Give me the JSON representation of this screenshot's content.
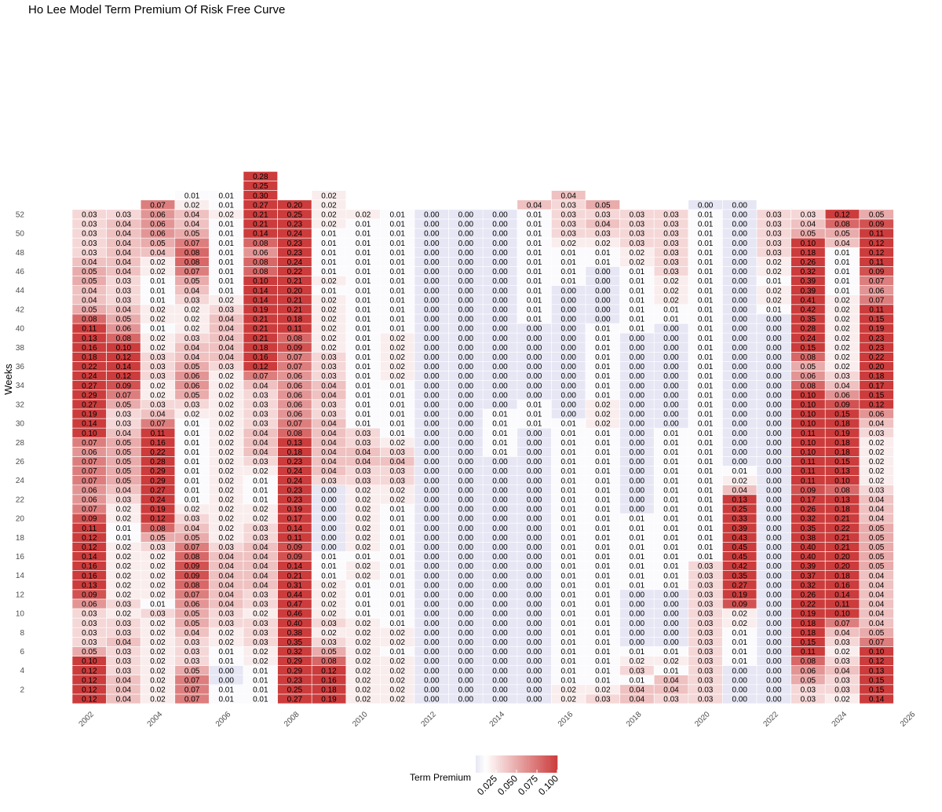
{
  "chart_data": {
    "type": "heatmap",
    "title": "Ho Lee Model Term Premium Of Risk Free Curve",
    "xlabel": "",
    "ylabel": "Weeks",
    "legend_title": "Term Premium",
    "legend_position": "bottom",
    "legend_ticks": [
      "0.025",
      "0.050",
      "0.075",
      "0.100"
    ],
    "color_scale": {
      "low": "#6a5acd",
      "mid": "#ffffff",
      "high": "#cd3434",
      "limits": [
        0,
        0.1
      ]
    },
    "xlim": [
      2001,
      2026
    ],
    "x_ticks": [
      "2002",
      "2004",
      "2006",
      "2008",
      "2010",
      "2012",
      "2014",
      "2016",
      "2018",
      "2020",
      "2022",
      "2024",
      "2026"
    ],
    "y_ticks": [
      "2",
      "4",
      "6",
      "8",
      "10",
      "12",
      "14",
      "16",
      "18",
      "20",
      "22",
      "24",
      "26",
      "28",
      "30",
      "32",
      "34",
      "36",
      "38",
      "40",
      "42",
      "44",
      "46",
      "48",
      "50",
      "52"
    ],
    "years": [
      2002,
      2003,
      2004,
      2005,
      2006,
      2007,
      2008,
      2009,
      2010,
      2011,
      2012,
      2013,
      2014,
      2015,
      2016,
      2017,
      2018,
      2019,
      2020,
      2021,
      2022,
      2023,
      2024,
      2025
    ],
    "values_by_year": [
      [
        0.12,
        0.12,
        0.12,
        0.12,
        0.1,
        0.05,
        0.03,
        0.03,
        0.03,
        0.03,
        0.06,
        0.09,
        0.13,
        0.16,
        0.16,
        0.14,
        0.12,
        0.12,
        0.11,
        0.09,
        0.07,
        0.06,
        0.06,
        0.07,
        0.07,
        0.07,
        0.06,
        0.07,
        0.1,
        0.14,
        0.19,
        0.27,
        0.29,
        0.27,
        0.24,
        0.22,
        0.18,
        0.16,
        0.13,
        0.11,
        0.08,
        0.05,
        0.04,
        0.04,
        0.05,
        0.05,
        0.04,
        0.03,
        0.03,
        0.03,
        0.03,
        0.03
      ],
      [
        0.04,
        0.04,
        0.04,
        0.03,
        0.03,
        0.03,
        0.04,
        0.03,
        0.03,
        0.02,
        0.03,
        0.02,
        0.02,
        0.02,
        0.02,
        0.02,
        0.02,
        0.01,
        0.01,
        0.02,
        0.02,
        0.03,
        0.04,
        0.05,
        0.05,
        0.05,
        0.05,
        0.05,
        0.04,
        0.03,
        0.03,
        0.05,
        0.07,
        0.09,
        0.12,
        0.14,
        0.12,
        0.1,
        0.08,
        0.06,
        0.05,
        0.04,
        0.03,
        0.03,
        0.03,
        0.04,
        0.04,
        0.04,
        0.04,
        0.04,
        0.04,
        0.03
      ],
      [
        0.02,
        0.02,
        0.02,
        0.02,
        0.02,
        0.02,
        0.02,
        0.02,
        0.02,
        0.03,
        0.01,
        0.02,
        0.02,
        0.02,
        0.02,
        0.02,
        0.03,
        0.05,
        0.08,
        0.12,
        0.19,
        0.24,
        0.27,
        0.29,
        0.29,
        0.28,
        0.22,
        0.16,
        0.11,
        0.07,
        0.04,
        0.03,
        0.02,
        0.02,
        0.03,
        0.03,
        0.03,
        0.02,
        0.02,
        0.01,
        0.02,
        0.02,
        0.01,
        0.01,
        0.01,
        0.02,
        0.02,
        0.04,
        0.05,
        0.06,
        0.06,
        0.06,
        0.07
      ],
      [
        0.07,
        0.07,
        0.07,
        0.05,
        0.03,
        0.03,
        0.03,
        0.04,
        0.05,
        0.05,
        0.06,
        0.07,
        0.08,
        0.09,
        0.09,
        0.08,
        0.07,
        0.05,
        0.04,
        0.03,
        0.02,
        0.01,
        0.01,
        0.01,
        0.01,
        0.01,
        0.01,
        0.01,
        0.01,
        0.01,
        0.02,
        0.03,
        0.05,
        0.06,
        0.06,
        0.05,
        0.04,
        0.04,
        0.03,
        0.02,
        0.02,
        0.02,
        0.03,
        0.04,
        0.05,
        0.07,
        0.08,
        0.08,
        0.07,
        0.05,
        0.04,
        0.04,
        0.02,
        0.01
      ],
      [
        0.01,
        0.01,
        0.0,
        0.0,
        0.01,
        0.01,
        0.02,
        0.02,
        0.03,
        0.03,
        0.04,
        0.04,
        0.04,
        0.04,
        0.04,
        0.04,
        0.03,
        0.02,
        0.02,
        0.02,
        0.02,
        0.02,
        0.02,
        0.02,
        0.02,
        0.02,
        0.02,
        0.02,
        0.02,
        0.02,
        0.02,
        0.02,
        0.02,
        0.02,
        0.02,
        0.03,
        0.04,
        0.04,
        0.04,
        0.04,
        0.04,
        0.03,
        0.02,
        0.01,
        0.01,
        0.01,
        0.01,
        0.01,
        0.01,
        0.01,
        0.01,
        0.02,
        0.01,
        0.01
      ],
      [
        0.01,
        0.01,
        0.01,
        0.01,
        0.02,
        0.02,
        0.03,
        0.03,
        0.03,
        0.02,
        0.03,
        0.03,
        0.04,
        0.04,
        0.04,
        0.04,
        0.04,
        0.03,
        0.03,
        0.02,
        0.02,
        0.01,
        0.01,
        0.01,
        0.02,
        0.03,
        0.04,
        0.04,
        0.04,
        0.03,
        0.03,
        0.03,
        0.03,
        0.04,
        0.07,
        0.12,
        0.16,
        0.18,
        0.21,
        0.21,
        0.21,
        0.19,
        0.14,
        0.14,
        0.1,
        0.08,
        0.08,
        0.06,
        0.08,
        0.14,
        0.21,
        0.21,
        0.27,
        0.3,
        0.25,
        0.28
      ],
      [
        0.27,
        0.25,
        0.23,
        0.29,
        0.29,
        0.32,
        0.35,
        0.38,
        0.4,
        0.46,
        0.47,
        0.44,
        0.31,
        0.21,
        0.14,
        0.09,
        0.09,
        0.11,
        0.14,
        0.17,
        0.19,
        0.23,
        0.23,
        0.24,
        0.24,
        0.23,
        0.18,
        0.13,
        0.08,
        0.07,
        0.06,
        0.06,
        0.06,
        0.06,
        0.06,
        0.07,
        0.07,
        0.09,
        0.08,
        0.11,
        0.18,
        0.21,
        0.21,
        0.2,
        0.21,
        0.22,
        0.24,
        0.23,
        0.23,
        0.24,
        0.23,
        0.25,
        0.2
      ],
      [
        0.19,
        0.18,
        0.16,
        0.12,
        0.08,
        0.05,
        0.03,
        0.02,
        0.03,
        0.02,
        0.02,
        0.02,
        0.02,
        0.01,
        0.01,
        0.01,
        0.0,
        0.0,
        0.0,
        0.0,
        0.0,
        0.0,
        0.0,
        0.03,
        0.04,
        0.04,
        0.04,
        0.04,
        0.04,
        0.04,
        0.03,
        0.03,
        0.04,
        0.04,
        0.03,
        0.03,
        0.03,
        0.02,
        0.02,
        0.02,
        0.02,
        0.02,
        0.02,
        0.01,
        0.02,
        0.01,
        0.01,
        0.01,
        0.01,
        0.01,
        0.02,
        0.02,
        0.02,
        0.02
      ],
      [
        0.02,
        0.02,
        0.02,
        0.02,
        0.02,
        0.02,
        0.02,
        0.02,
        0.02,
        0.01,
        0.01,
        0.01,
        0.01,
        0.02,
        0.02,
        0.01,
        0.02,
        0.02,
        0.02,
        0.02,
        0.02,
        0.02,
        0.02,
        0.03,
        0.03,
        0.04,
        0.04,
        0.03,
        0.03,
        0.01,
        0.01,
        0.01,
        0.01,
        0.01,
        0.01,
        0.01,
        0.01,
        0.01,
        0.01,
        0.01,
        0.01,
        0.01,
        0.01,
        0.01,
        0.01,
        0.01,
        0.01,
        0.01,
        0.01,
        0.01,
        0.01,
        0.02
      ],
      [
        0.02,
        0.02,
        0.02,
        0.02,
        0.02,
        0.01,
        0.02,
        0.02,
        0.01,
        0.01,
        0.01,
        0.01,
        0.01,
        0.01,
        0.01,
        0.01,
        0.01,
        0.01,
        0.01,
        0.01,
        0.01,
        0.02,
        0.02,
        0.03,
        0.03,
        0.04,
        0.03,
        0.02,
        0.01,
        0.01,
        0.01,
        0.01,
        0.01,
        0.01,
        0.02,
        0.02,
        0.02,
        0.02,
        0.02,
        0.01,
        0.01,
        0.01,
        0.01,
        0.01,
        0.01,
        0.01,
        0.01,
        0.01,
        0.01,
        0.01,
        0.01,
        0.01
      ],
      [
        0.0,
        0.0,
        0.0,
        0.0,
        0.0,
        0.0,
        0.0,
        0.0,
        0.0,
        0.0,
        0.0,
        0.0,
        0.0,
        0.0,
        0.0,
        0.0,
        0.0,
        0.0,
        0.0,
        0.0,
        0.0,
        0.0,
        0.0,
        0.0,
        0.0,
        0.0,
        0.0,
        0.0,
        0.0,
        0.0,
        0.0,
        0.0,
        0.0,
        0.0,
        0.0,
        0.0,
        0.0,
        0.0,
        0.0,
        0.0,
        0.0,
        0.0,
        0.0,
        0.0,
        0.0,
        0.0,
        0.0,
        0.0,
        0.0,
        0.0,
        0.0,
        0.0
      ],
      [
        0.0,
        0.0,
        0.0,
        0.0,
        0.0,
        0.0,
        0.0,
        0.0,
        0.0,
        0.0,
        0.0,
        0.0,
        0.0,
        0.0,
        0.0,
        0.0,
        0.0,
        0.0,
        0.0,
        0.0,
        0.0,
        0.0,
        0.0,
        0.0,
        0.0,
        0.0,
        0.0,
        0.0,
        0.0,
        0.0,
        0.0,
        0.0,
        0.0,
        0.0,
        0.0,
        0.0,
        0.0,
        0.0,
        0.0,
        0.0,
        0.0,
        0.0,
        0.0,
        0.0,
        0.0,
        0.0,
        0.0,
        0.0,
        0.0,
        0.0,
        0.0,
        0.0
      ],
      [
        0.0,
        0.0,
        0.0,
        0.0,
        0.0,
        0.0,
        0.0,
        0.0,
        0.0,
        0.0,
        0.0,
        0.0,
        0.0,
        0.0,
        0.0,
        0.0,
        0.0,
        0.0,
        0.0,
        0.0,
        0.0,
        0.0,
        0.0,
        0.0,
        0.0,
        0.0,
        0.01,
        0.01,
        0.01,
        0.01,
        0.01,
        0.0,
        0.0,
        0.0,
        0.0,
        0.0,
        0.0,
        0.0,
        0.0,
        0.0,
        0.0,
        0.0,
        0.0,
        0.0,
        0.0,
        0.0,
        0.0,
        0.0,
        0.0,
        0.0,
        0.0,
        0.0
      ],
      [
        0.0,
        0.0,
        0.0,
        0.0,
        0.0,
        0.0,
        0.0,
        0.0,
        0.0,
        0.0,
        0.0,
        0.0,
        0.0,
        0.0,
        0.0,
        0.0,
        0.0,
        0.0,
        0.0,
        0.0,
        0.0,
        0.0,
        0.0,
        0.0,
        0.0,
        0.0,
        0.0,
        0.0,
        0.0,
        0.01,
        0.01,
        0.01,
        0.0,
        0.0,
        0.0,
        0.0,
        0.0,
        0.0,
        0.0,
        0.0,
        0.01,
        0.01,
        0.01,
        0.01,
        0.01,
        0.01,
        0.01,
        0.01,
        0.01,
        0.01,
        0.01,
        0.01
      ],
      [
        0.02,
        0.02,
        0.01,
        0.01,
        0.01,
        0.01,
        0.01,
        0.01,
        0.01,
        0.01,
        0.01,
        0.01,
        0.01,
        0.01,
        0.01,
        0.01,
        0.01,
        0.01,
        0.01,
        0.01,
        0.01,
        0.01,
        0.01,
        0.01,
        0.01,
        0.01,
        0.01,
        0.01,
        0.01,
        0.01,
        0.0,
        0.0,
        0.0,
        0.0,
        0.0,
        0.0,
        0.0,
        0.0,
        0.0,
        0.0,
        0.0,
        0.0,
        0.0,
        0.0,
        0.01,
        0.01,
        0.01,
        0.01,
        0.02,
        0.03,
        0.03,
        0.03,
        0.03,
        0.04
      ],
      [
        0.03,
        0.02,
        0.01,
        0.01,
        0.01,
        0.01,
        0.01,
        0.01,
        0.01,
        0.01,
        0.01,
        0.01,
        0.01,
        0.01,
        0.01,
        0.01,
        0.01,
        0.01,
        0.01,
        0.01,
        0.01,
        0.01,
        0.01,
        0.01,
        0.01,
        0.01,
        0.01,
        0.01,
        0.01,
        0.02,
        0.02,
        0.02,
        0.01,
        0.01,
        0.01,
        0.01,
        0.01,
        0.01,
        0.01,
        0.01,
        0.0,
        0.0,
        0.0,
        0.0,
        0.0,
        0.0,
        0.01,
        0.01,
        0.02,
        0.03,
        0.04,
        0.03,
        0.05
      ],
      [
        0.04,
        0.04,
        0.01,
        0.03,
        0.02,
        0.01,
        0.0,
        0.0,
        0.0,
        0.0,
        0.0,
        0.0,
        0.01,
        0.01,
        0.01,
        0.01,
        0.01,
        0.01,
        0.01,
        0.01,
        0.0,
        0.0,
        0.0,
        0.0,
        0.0,
        0.0,
        0.0,
        0.0,
        0.0,
        0.0,
        0.0,
        0.0,
        0.0,
        0.0,
        0.0,
        0.0,
        0.0,
        0.0,
        0.0,
        0.01,
        0.01,
        0.01,
        0.01,
        0.01,
        0.01,
        0.01,
        0.02,
        0.02,
        0.03,
        0.03,
        0.03,
        0.03
      ],
      [
        0.03,
        0.04,
        0.04,
        0.01,
        0.02,
        0.01,
        0.0,
        0.0,
        0.0,
        0.0,
        0.0,
        0.0,
        0.01,
        0.01,
        0.01,
        0.01,
        0.01,
        0.01,
        0.01,
        0.01,
        0.01,
        0.01,
        0.01,
        0.01,
        0.01,
        0.01,
        0.01,
        0.01,
        0.01,
        0.0,
        0.0,
        0.0,
        0.0,
        0.0,
        0.0,
        0.0,
        0.0,
        0.0,
        0.0,
        0.0,
        0.01,
        0.01,
        0.02,
        0.02,
        0.02,
        0.03,
        0.03,
        0.03,
        0.03,
        0.03,
        0.03,
        0.03
      ],
      [
        0.03,
        0.03,
        0.03,
        0.03,
        0.03,
        0.03,
        0.03,
        0.03,
        0.03,
        0.03,
        0.03,
        0.03,
        0.03,
        0.03,
        0.03,
        0.01,
        0.01,
        0.01,
        0.01,
        0.01,
        0.01,
        0.01,
        0.01,
        0.01,
        0.01,
        0.01,
        0.01,
        0.01,
        0.01,
        0.01,
        0.01,
        0.01,
        0.01,
        0.01,
        0.01,
        0.01,
        0.01,
        0.01,
        0.01,
        0.01,
        0.01,
        0.01,
        0.01,
        0.01,
        0.01,
        0.01,
        0.01,
        0.01,
        0.01,
        0.01,
        0.01,
        0.01
      ],
      [
        0.0,
        0.0,
        0.0,
        0.0,
        0.01,
        0.01,
        0.01,
        0.01,
        0.02,
        0.02,
        0.09,
        0.19,
        0.27,
        0.35,
        0.42,
        0.45,
        0.45,
        0.43,
        0.39,
        0.33,
        0.25,
        0.13,
        0.04,
        0.02,
        0.01,
        0.0,
        0.0,
        0.0,
        0.0,
        0.0,
        0.0,
        0.0,
        0.0,
        0.0,
        0.0,
        0.0,
        0.0,
        0.0,
        0.0,
        0.0,
        0.0,
        0.0,
        0.0,
        0.0,
        0.0,
        0.0,
        0.0,
        0.0,
        0.0,
        0.0,
        0.0,
        0.0,
        0.0
      ],
      [
        0.0,
        0.0,
        0.0,
        0.0,
        0.0,
        0.0,
        0.0,
        0.0,
        0.0,
        0.0,
        0.0,
        0.0,
        0.0,
        0.0,
        0.0,
        0.0,
        0.0,
        0.0,
        0.0,
        0.0,
        0.0,
        0.0,
        0.0,
        0.0,
        0.0,
        0.0,
        0.0,
        0.0,
        0.0,
        0.0,
        0.0,
        0.0,
        0.0,
        0.0,
        0.0,
        0.0,
        0.0,
        0.0,
        0.0,
        0.0,
        0.0,
        0.01,
        0.02,
        0.02,
        0.01,
        0.02,
        0.02,
        0.03,
        0.03,
        0.03,
        0.03,
        0.03
      ],
      [
        0.03,
        0.03,
        0.05,
        0.06,
        0.08,
        0.11,
        0.15,
        0.18,
        0.18,
        0.19,
        0.22,
        0.26,
        0.32,
        0.37,
        0.39,
        0.4,
        0.4,
        0.38,
        0.35,
        0.32,
        0.26,
        0.17,
        0.09,
        0.11,
        0.11,
        0.11,
        0.1,
        0.1,
        0.11,
        0.1,
        0.1,
        0.1,
        0.1,
        0.08,
        0.06,
        0.05,
        0.08,
        0.15,
        0.24,
        0.28,
        0.35,
        0.42,
        0.41,
        0.39,
        0.39,
        0.32,
        0.26,
        0.18,
        0.1,
        0.05,
        0.04,
        0.03
      ],
      [
        0.02,
        0.03,
        0.03,
        0.04,
        0.03,
        0.02,
        0.03,
        0.04,
        0.07,
        0.1,
        0.11,
        0.14,
        0.16,
        0.18,
        0.2,
        0.2,
        0.21,
        0.21,
        0.22,
        0.21,
        0.18,
        0.13,
        0.08,
        0.1,
        0.13,
        0.15,
        0.18,
        0.18,
        0.19,
        0.18,
        0.15,
        0.09,
        0.06,
        0.04,
        0.03,
        0.02,
        0.02,
        0.02,
        0.02,
        0.02,
        0.02,
        0.02,
        0.02,
        0.01,
        0.01,
        0.01,
        0.01,
        0.01,
        0.04,
        0.05,
        0.08,
        0.12
      ],
      [
        0.14,
        0.15,
        0.15,
        0.13,
        0.12,
        0.1,
        0.07,
        0.05,
        0.04,
        0.04,
        0.04,
        0.04,
        0.04,
        0.04,
        0.05,
        0.05,
        0.05,
        0.05,
        0.05,
        0.04,
        0.04,
        0.04,
        0.03,
        0.02,
        0.02,
        0.02,
        0.02,
        0.02,
        0.03,
        0.04,
        0.06,
        0.12,
        0.15,
        0.17,
        0.18,
        0.2,
        0.22,
        0.23,
        0.23,
        0.19,
        0.15,
        0.11,
        0.07,
        0.06,
        0.07,
        0.09,
        0.11,
        0.12,
        0.12,
        0.11,
        0.09,
        0.05
      ],
      [
        0.03,
        0.02,
        0.01,
        0.01,
        0.01,
        0.01,
        0.01,
        0.01,
        0.01,
        0.02,
        0.03,
        0.03,
        0.04,
        0.06
      ]
    ],
    "extra_cells": [
      {
        "year": 2004,
        "week": 53,
        "value": 0.07
      },
      {
        "year": 2009,
        "week": 53,
        "value": 0.02
      },
      {
        "year": 2015,
        "week": 53,
        "value": 0.04
      },
      {
        "year": 2020,
        "week": 53,
        "value": 0.0
      }
    ]
  }
}
